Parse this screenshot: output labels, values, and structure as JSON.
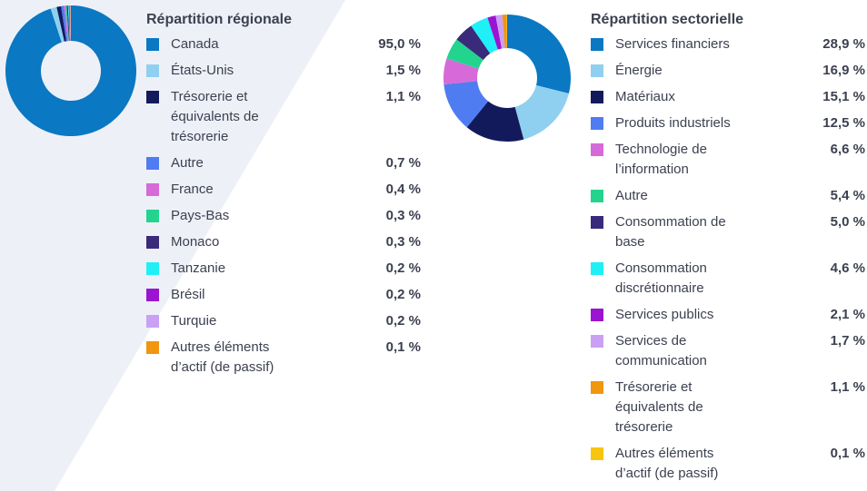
{
  "chart_data": [
    {
      "type": "pie",
      "title": "Répartition régionale",
      "categories": [
        "Canada",
        "États-Unis",
        "Trésorerie et équivalents de trésorerie",
        "Autre",
        "France",
        "Pays-Bas",
        "Monaco",
        "Tanzanie",
        "Brésil",
        "Turquie",
        "Autres éléments d’actif (de passif)"
      ],
      "values": [
        95.0,
        1.5,
        1.1,
        0.7,
        0.4,
        0.3,
        0.3,
        0.2,
        0.2,
        0.2,
        0.1
      ],
      "value_labels": [
        "95,0 %",
        "1,5 %",
        "1,1 %",
        "0,7 %",
        "0,4 %",
        "0,3 %",
        "0,3 %",
        "0,2 %",
        "0,2 %",
        "0,2 %",
        "0,1 %"
      ],
      "colors": [
        "#0a78c2",
        "#8fd0f0",
        "#131a5c",
        "#4f7cf0",
        "#d66ad9",
        "#22d48e",
        "#3a2a7a",
        "#1ff0f7",
        "#9b14d1",
        "#caa0f5",
        "#f0960f"
      ]
    },
    {
      "type": "pie",
      "title": "Répartition sectorielle",
      "categories": [
        "Services financiers",
        "Énergie",
        "Matériaux",
        "Produits industriels",
        "Technologie de l’information",
        "Autre",
        "Consommation de base",
        "Consommation discrétionnaire",
        "Services publics",
        "Services de communication",
        "Trésorerie et équivalents de trésorerie",
        "Autres éléments d’actif (de passif)"
      ],
      "values": [
        28.9,
        16.9,
        15.1,
        12.5,
        6.6,
        5.4,
        5.0,
        4.6,
        2.1,
        1.7,
        1.1,
        0.1
      ],
      "value_labels": [
        "28,9 %",
        "16,9 %",
        "15,1 %",
        "12,5 %",
        "6,6 %",
        "5,4 %",
        "5,0 %",
        "4,6 %",
        "2,1 %",
        "1,7 %",
        "1,1 %",
        "0,1 %"
      ],
      "colors": [
        "#0a78c2",
        "#8fd0f0",
        "#131a5c",
        "#4f7cf0",
        "#d66ad9",
        "#22d48e",
        "#3a2a7a",
        "#1ff0f7",
        "#9b14d1",
        "#caa0f5",
        "#f0960f",
        "#f7c50f"
      ]
    }
  ]
}
